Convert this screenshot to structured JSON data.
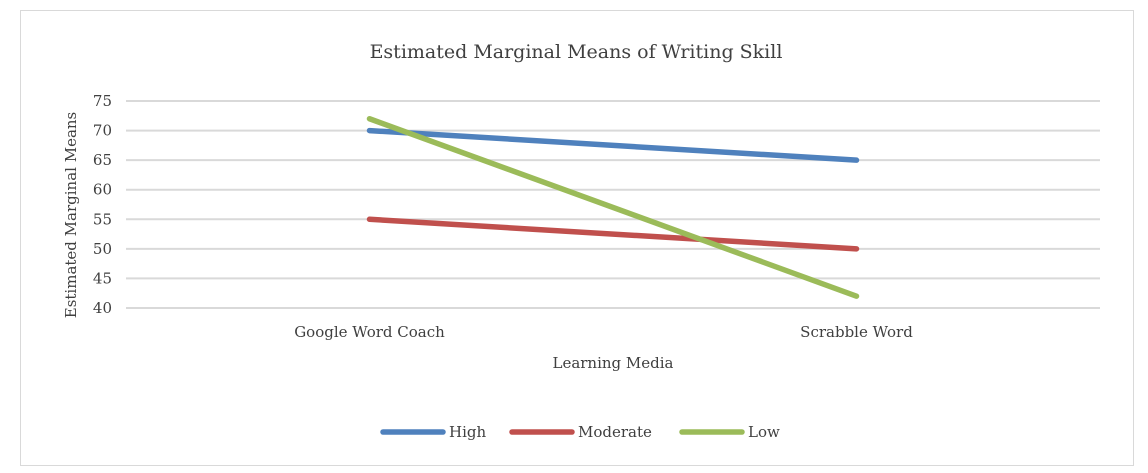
{
  "chart_data": {
    "type": "line",
    "title": "Estimated Marginal Means of Writing Skill",
    "xlabel": "Learning Media",
    "ylabel": "Estimated Marginal Means",
    "categories": [
      "Google Word Coach",
      "Scrabble Word"
    ],
    "ylim": [
      40,
      75
    ],
    "yticks": [
      40,
      45,
      50,
      55,
      60,
      65,
      70,
      75
    ],
    "grid": true,
    "legend_position": "bottom",
    "series": [
      {
        "name": "High",
        "values": [
          70,
          65
        ],
        "color": "#4f81bd"
      },
      {
        "name": "Moderate",
        "values": [
          55,
          50
        ],
        "color": "#c0504d"
      },
      {
        "name": "Low",
        "values": [
          72,
          42
        ],
        "color": "#9bbb59"
      }
    ]
  }
}
